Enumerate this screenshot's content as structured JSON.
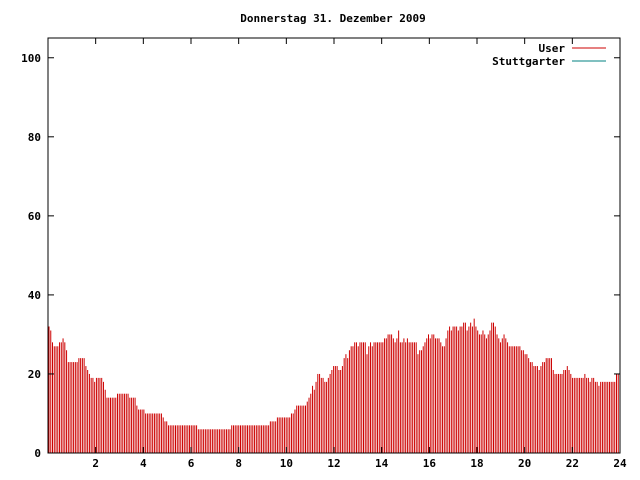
{
  "chart_data": {
    "type": "bar",
    "title": "Donnerstag 31. Dezember 2009",
    "xlabel": "",
    "ylabel": "",
    "xlim": [
      0,
      24
    ],
    "ylim": [
      0,
      105
    ],
    "xticks": [
      "2",
      "4",
      "6",
      "8",
      "10",
      "12",
      "14",
      "16",
      "18",
      "20",
      "22",
      "24"
    ],
    "yticks": [
      "0",
      "20",
      "40",
      "60",
      "80",
      "100"
    ],
    "grid": false,
    "legend_position": "top-right",
    "series": [
      {
        "name": "User",
        "color": "#cc0000",
        "interval_hours": 0.0833,
        "values": [
          32,
          31,
          28,
          27,
          27,
          27,
          28,
          28,
          29,
          28,
          26,
          23,
          23,
          23,
          23,
          23,
          23,
          24,
          24,
          24,
          24,
          22,
          21,
          20,
          19,
          19,
          18,
          19,
          19,
          19,
          19,
          18,
          16,
          14,
          14,
          14,
          14,
          14,
          14,
          15,
          15,
          15,
          15,
          15,
          15,
          15,
          14,
          14,
          14,
          14,
          12,
          11,
          11,
          11,
          11,
          10,
          10,
          10,
          10,
          10,
          10,
          10,
          10,
          10,
          10,
          9,
          8,
          8,
          7,
          7,
          7,
          7,
          7,
          7,
          7,
          7,
          7,
          7,
          7,
          7,
          7,
          7,
          7,
          7,
          7,
          6,
          6,
          6,
          6,
          6,
          6,
          6,
          6,
          6,
          6,
          6,
          6,
          6,
          6,
          6,
          6,
          6,
          6,
          6,
          7,
          7,
          7,
          7,
          7,
          7,
          7,
          7,
          7,
          7,
          7,
          7,
          7,
          7,
          7,
          7,
          7,
          7,
          7,
          7,
          7,
          7,
          8,
          8,
          8,
          8,
          9,
          9,
          9,
          9,
          9,
          9,
          9,
          9,
          10,
          10,
          11,
          12,
          12,
          12,
          12,
          12,
          12,
          13,
          14,
          15,
          17,
          16,
          18,
          20,
          20,
          19,
          19,
          18,
          18,
          19,
          20,
          21,
          22,
          22,
          22,
          21,
          21,
          22,
          24,
          25,
          24,
          26,
          27,
          27,
          28,
          28,
          27,
          28,
          28,
          28,
          28,
          25,
          27,
          28,
          27,
          28,
          28,
          28,
          28,
          28,
          28,
          29,
          29,
          30,
          30,
          30,
          29,
          28,
          29,
          31,
          28,
          28,
          29,
          28,
          29,
          28,
          28,
          28,
          28,
          28,
          25,
          26,
          26,
          27,
          28,
          29,
          30,
          29,
          30,
          30,
          29,
          29,
          29,
          28,
          27,
          27,
          29,
          31,
          32,
          31,
          32,
          32,
          32,
          31,
          32,
          32,
          33,
          33,
          31,
          32,
          33,
          32,
          34,
          32,
          31,
          30,
          30,
          31,
          30,
          29,
          30,
          31,
          33,
          33,
          32,
          30,
          29,
          28,
          29,
          30,
          29,
          28,
          27,
          27,
          27,
          27,
          27,
          27,
          27,
          26,
          26,
          25,
          25,
          24,
          23,
          23,
          22,
          22,
          22,
          21,
          22,
          23,
          23,
          24,
          24,
          24,
          24,
          21,
          20,
          20,
          20,
          20,
          20,
          21,
          21,
          22,
          21,
          20,
          19,
          19,
          19,
          19,
          19,
          19,
          19,
          20,
          19,
          19,
          18,
          19,
          19,
          18,
          18,
          17,
          18,
          18,
          18,
          18,
          18,
          18,
          18,
          18,
          18,
          20,
          20
        ]
      },
      {
        "name": "Stuttgarter",
        "color": "#008080",
        "values": []
      }
    ]
  }
}
